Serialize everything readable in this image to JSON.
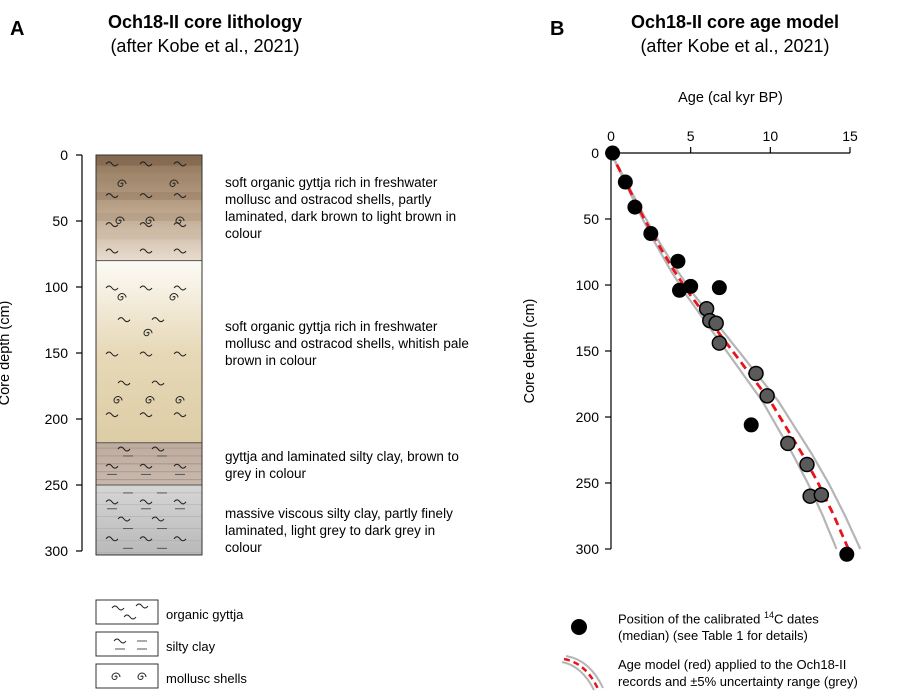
{
  "panel_a": {
    "letter": "A",
    "title": "Och18-II core lithology",
    "subtitle": "(after Kobe et al., 2021)",
    "ylabel": "Core depth (cm)",
    "yticks": [
      0,
      50,
      100,
      150,
      200,
      250,
      300
    ],
    "units": [
      {
        "name": "unit-1",
        "top": 0,
        "bottom": 80,
        "description": "soft organic gyttja rich in freshwater mollusc and ostracod shells, partly laminated, dark brown to light brown in colour",
        "colors": [
          "#8e7358",
          "#b9a288",
          "#e9ddcf"
        ]
      },
      {
        "name": "unit-2",
        "top": 80,
        "bottom": 218,
        "description": "soft organic gyttja rich in freshwater mollusc and ostracod shells, whitish pale brown in colour",
        "colors": [
          "#fdfbf6",
          "#e7d9b8",
          "#ddcda6"
        ]
      },
      {
        "name": "unit-3",
        "top": 218,
        "bottom": 250,
        "description": "gyttja and laminated silty clay, brown to grey in colour",
        "colors": [
          "#bfac9f",
          "#c8b8ad"
        ]
      },
      {
        "name": "unit-4",
        "top": 250,
        "bottom": 303,
        "description": "massive viscous silty clay, partly finely laminated, light grey to dark grey in colour",
        "colors": [
          "#d6d6d6",
          "#b9b9b9"
        ]
      }
    ],
    "legend": [
      {
        "symbol": "gyttja-symbol-icon",
        "label": "organic gyttja"
      },
      {
        "symbol": "silty-clay-symbol-icon",
        "label": "silty clay"
      },
      {
        "symbol": "mollusc-shell-symbol-icon",
        "label": "mollusc shells"
      }
    ]
  },
  "panel_b": {
    "letter": "B",
    "title": "Och18-II core age model",
    "subtitle": "(after Kobe et al., 2021)",
    "legend": {
      "dates_label_prefix": "Position of the calibrated ",
      "dates_label_sup": "14",
      "dates_label_suffix": "C dates",
      "dates_label_line2": "(median) (see Table 1 for details)",
      "model_label_line1": "Age model (red) applied to the Och18-II",
      "model_label_line2": "records and ±5% uncertainty range (grey)"
    }
  },
  "chart_data": {
    "type": "scatter",
    "title": "Och18-II core age model",
    "xlabel": "Age (cal kyr BP)",
    "ylabel": "Core depth (cm)",
    "xlim": [
      0,
      15
    ],
    "ylim": [
      0,
      300
    ],
    "xticks": [
      0,
      5,
      10,
      15
    ],
    "yticks": [
      0,
      50,
      100,
      150,
      200,
      250,
      300
    ],
    "x_axis_position": "top",
    "y_inverted": true,
    "series": [
      {
        "name": "Position of the calibrated 14C dates (median)",
        "style": "points",
        "points_black": [
          [
            0.1,
            0
          ],
          [
            0.9,
            22
          ],
          [
            1.5,
            41
          ],
          [
            2.5,
            61
          ],
          [
            4.2,
            82
          ],
          [
            4.3,
            104
          ],
          [
            5.0,
            101
          ],
          [
            6.8,
            102
          ],
          [
            8.8,
            206
          ],
          [
            14.8,
            304
          ]
        ],
        "points_grey": [
          [
            6.0,
            118
          ],
          [
            6.2,
            127
          ],
          [
            6.6,
            129
          ],
          [
            6.8,
            144
          ],
          [
            9.1,
            167
          ],
          [
            9.8,
            184
          ],
          [
            11.1,
            220
          ],
          [
            12.3,
            236
          ],
          [
            12.5,
            260
          ],
          [
            13.2,
            259
          ]
        ],
        "colors": {
          "black": "#000000",
          "grey": "#5a5a5a"
        }
      },
      {
        "name": "Age model (red)",
        "style": "dashed-line",
        "color": "#e8141c",
        "x": [
          0,
          1,
          2,
          3,
          4,
          5,
          6,
          7,
          8,
          9,
          10,
          11,
          12,
          13,
          14,
          14.9
        ],
        "y": [
          0,
          24,
          48,
          70,
          90,
          108,
          124,
          140,
          156,
          172,
          188,
          208,
          228,
          250,
          275,
          300
        ]
      },
      {
        "name": "±5% uncertainty range (grey)",
        "style": "line",
        "color": "#b5b5b5",
        "upper_factor": 1.05,
        "lower_factor": 0.95
      }
    ]
  }
}
